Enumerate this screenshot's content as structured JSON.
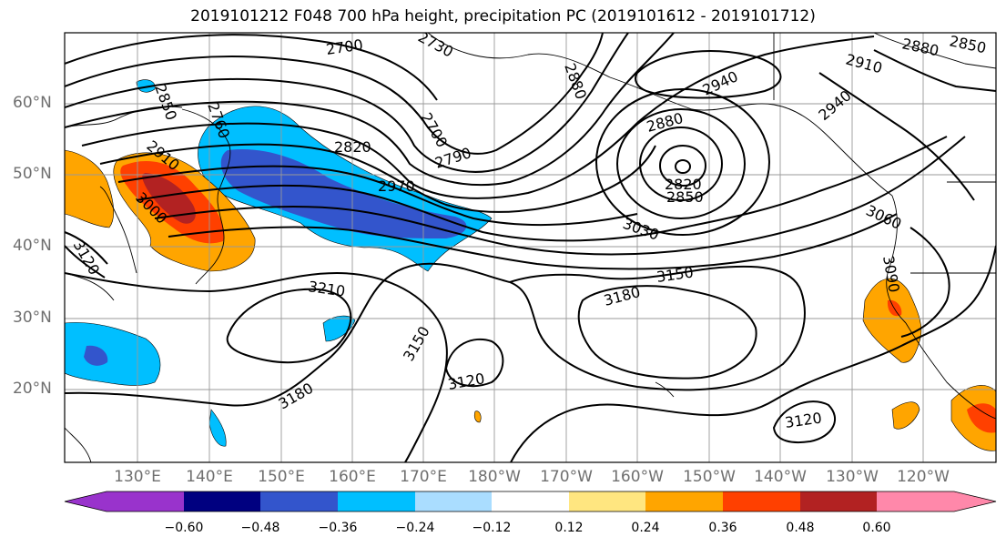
{
  "title": "2019101212 F048 700 hPa height, precipitation PC (2019101612 - 2019101712)",
  "lat_labels": [
    "60°N",
    "50°N",
    "40°N",
    "30°N",
    "20°N"
  ],
  "lon_labels": [
    "130°E",
    "140°E",
    "150°E",
    "160°E",
    "170°E",
    "180°W",
    "170°W",
    "160°W",
    "150°W",
    "140°W",
    "130°W",
    "120°W"
  ],
  "contour_labels": [
    "2700",
    "2730",
    "2760",
    "2790",
    "2820",
    "2850",
    "2880",
    "2910",
    "2940",
    "2970",
    "3000",
    "3030",
    "3060",
    "3090",
    "3120",
    "3150",
    "3180",
    "3210"
  ],
  "colorbar": {
    "ticks": [
      "−0.60",
      "−0.48",
      "−0.36",
      "−0.24",
      "−0.12",
      "0.12",
      "0.24",
      "0.36",
      "0.48",
      "0.60"
    ],
    "colors": [
      "#9933cc",
      "#000080",
      "#3355cc",
      "#00bfff",
      "#aaddff",
      "#ffffff",
      "#ffe680",
      "#ffa500",
      "#ff4000",
      "#b22222",
      "#ff88aa",
      "#ff88aa"
    ]
  }
}
